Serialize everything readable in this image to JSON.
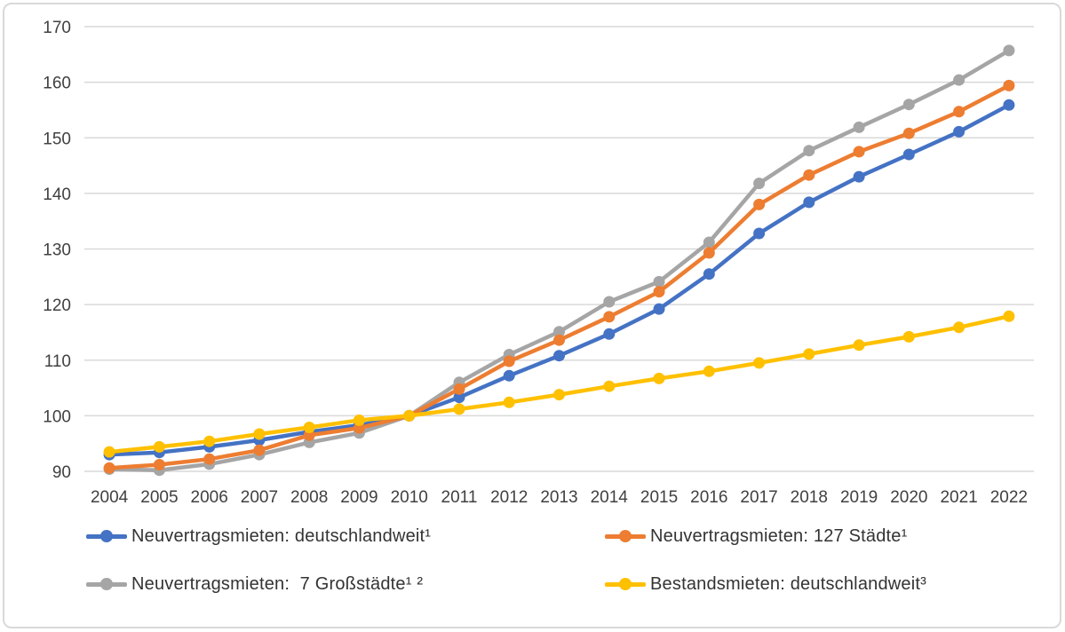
{
  "chart_data": {
    "type": "line",
    "title": "",
    "xlabel": "",
    "ylabel": "",
    "categories": [
      "2004",
      "2005",
      "2006",
      "2007",
      "2008",
      "2009",
      "2010",
      "2011",
      "2012",
      "2013",
      "2014",
      "2015",
      "2016",
      "2017",
      "2018",
      "2019",
      "2020",
      "2021",
      "2022"
    ],
    "series": [
      {
        "name": "Neuvertragsmieten: deutschlandweit¹",
        "color": "#4472C4",
        "values": [
          93.0,
          93.4,
          94.4,
          95.6,
          97.1,
          98.3,
          100.0,
          103.3,
          107.2,
          110.8,
          114.7,
          119.2,
          125.5,
          132.8,
          138.4,
          143.0,
          147.0,
          151.1,
          155.9
        ]
      },
      {
        "name": "Neuvertragsmieten: 127 Städte¹",
        "color": "#ED7D31",
        "values": [
          90.6,
          91.2,
          92.2,
          93.8,
          96.5,
          97.8,
          100.0,
          104.8,
          109.8,
          113.6,
          117.8,
          122.3,
          129.3,
          138.0,
          143.3,
          147.5,
          150.8,
          154.7,
          159.4
        ]
      },
      {
        "name": "Neuvertragsmieten:  7 Großstädte¹ ²",
        "color": "#A5A5A5",
        "values": [
          90.4,
          90.2,
          91.3,
          93.0,
          95.2,
          96.9,
          100.0,
          106.0,
          111.0,
          115.1,
          120.5,
          124.1,
          131.2,
          141.8,
          147.7,
          151.9,
          156.0,
          160.4,
          165.7
        ]
      },
      {
        "name": "Bestandsmieten: deutschlandweit³",
        "color": "#FFC000",
        "values": [
          93.5,
          94.4,
          95.4,
          96.7,
          97.9,
          99.2,
          100.0,
          101.2,
          102.4,
          103.8,
          105.3,
          106.7,
          108.0,
          109.5,
          111.1,
          112.7,
          114.2,
          115.9,
          117.9
        ]
      }
    ],
    "draw_order": [
      2,
      0,
      1,
      3
    ],
    "ylim": [
      90,
      170
    ],
    "yticks": [
      90,
      100,
      110,
      120,
      130,
      140,
      150,
      160,
      170
    ],
    "grid": true,
    "gridline_color": "#d9d9d9",
    "tick_label_color": "#404040",
    "legend_position": "bottom"
  }
}
